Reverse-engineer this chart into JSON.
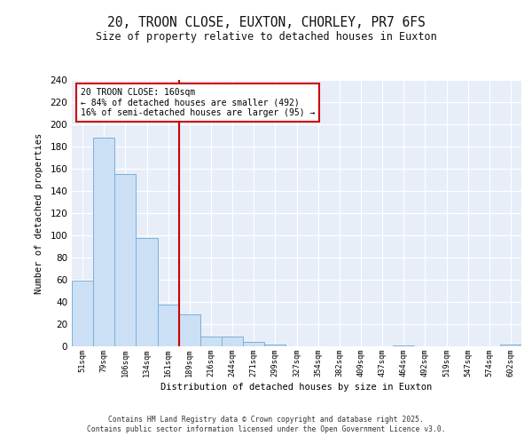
{
  "title_line1": "20, TROON CLOSE, EUXTON, CHORLEY, PR7 6FS",
  "title_line2": "Size of property relative to detached houses in Euxton",
  "xlabel": "Distribution of detached houses by size in Euxton",
  "ylabel": "Number of detached properties",
  "bar_labels": [
    "51sqm",
    "79sqm",
    "106sqm",
    "134sqm",
    "161sqm",
    "189sqm",
    "216sqm",
    "244sqm",
    "271sqm",
    "299sqm",
    "327sqm",
    "354sqm",
    "382sqm",
    "409sqm",
    "437sqm",
    "464sqm",
    "492sqm",
    "519sqm",
    "547sqm",
    "574sqm",
    "602sqm"
  ],
  "bar_values": [
    59,
    188,
    155,
    98,
    38,
    29,
    9,
    9,
    4,
    2,
    0,
    0,
    0,
    0,
    0,
    1,
    0,
    0,
    0,
    0,
    2
  ],
  "bar_color": "#cce0f5",
  "bar_edgecolor": "#7ab0d8",
  "background_color": "#e8eef8",
  "grid_color": "#ffffff",
  "vline_x": 4.5,
  "vline_color": "#cc0000",
  "annotation_box_text": "20 TROON CLOSE: 160sqm\n← 84% of detached houses are smaller (492)\n16% of semi-detached houses are larger (95) →",
  "annotation_box_color": "#cc0000",
  "annotation_box_facecolor": "#ffffff",
  "ylim": [
    0,
    240
  ],
  "yticks": [
    0,
    20,
    40,
    60,
    80,
    100,
    120,
    140,
    160,
    180,
    200,
    220,
    240
  ],
  "footer_line1": "Contains HM Land Registry data © Crown copyright and database right 2025.",
  "footer_line2": "Contains public sector information licensed under the Open Government Licence v3.0."
}
